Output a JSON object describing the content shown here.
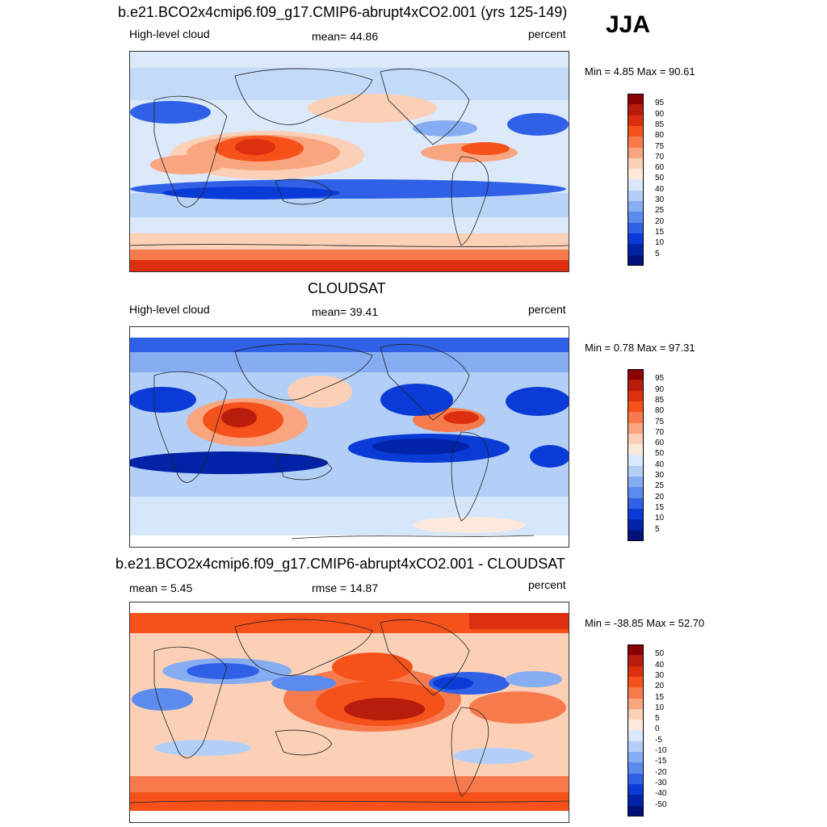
{
  "season": "JJA",
  "panels": [
    {
      "id": "model",
      "title": "b.e21.BCO2x4cmip6.f09_g17.CMIP6-abrupt4xCO2.001 (yrs 125-149)",
      "left_label": "High-level cloud",
      "center_label": "mean=  44.86",
      "right_label": "percent",
      "minmax": "Min =   4.85 Max =  90.61",
      "colorbar_labels": [
        "95",
        "90",
        "85",
        "80",
        "75",
        "70",
        "60",
        "50",
        "40",
        "30",
        "25",
        "20",
        "15",
        "10",
        "5"
      ],
      "colorbar_colors": [
        "#8b0000",
        "#b71c0c",
        "#dc2f0f",
        "#f5511a",
        "#f77a4d",
        "#f9a57f",
        "#fbd0b7",
        "#fde9dc",
        "#d9e8fb",
        "#b3cff7",
        "#86acf1",
        "#5b8bec",
        "#2f60e6",
        "#0b3bd6",
        "#0023a7",
        "#00127a"
      ]
    },
    {
      "id": "obs",
      "title": "CLOUDSAT",
      "left_label": "High-level cloud",
      "center_label": "mean=  39.41",
      "right_label": "percent",
      "minmax": "Min =   0.78 Max =  97.31",
      "colorbar_labels": [
        "95",
        "90",
        "85",
        "80",
        "75",
        "70",
        "60",
        "50",
        "40",
        "30",
        "25",
        "20",
        "15",
        "10",
        "5"
      ],
      "colorbar_colors": [
        "#8b0000",
        "#b71c0c",
        "#dc2f0f",
        "#f5511a",
        "#f77a4d",
        "#f9a57f",
        "#fbd0b7",
        "#fde9dc",
        "#d9e8fb",
        "#b3cff7",
        "#86acf1",
        "#5b8bec",
        "#2f60e6",
        "#0b3bd6",
        "#0023a7",
        "#00127a"
      ]
    },
    {
      "id": "diff",
      "title": "b.e21.BCO2x4cmip6.f09_g17.CMIP6-abrupt4xCO2.001 - CLOUDSAT",
      "left_label": "mean =   5.45",
      "center_label": "rmse =  14.87",
      "right_label": "percent",
      "minmax": "Min = -38.85 Max =  52.70",
      "colorbar_labels": [
        "50",
        "40",
        "30",
        "20",
        "15",
        "10",
        "5",
        "0",
        "-5",
        "-10",
        "-15",
        "-20",
        "-30",
        "-40",
        "-50"
      ],
      "colorbar_colors": [
        "#8b0000",
        "#b71c0c",
        "#dc2f0f",
        "#f5511a",
        "#f77a4d",
        "#f9a57f",
        "#fbd0b7",
        "#fde9dc",
        "#d9e8fb",
        "#b3cff7",
        "#86acf1",
        "#5b8bec",
        "#2f60e6",
        "#0b3bd6",
        "#0023a7",
        "#00127a"
      ]
    }
  ]
}
